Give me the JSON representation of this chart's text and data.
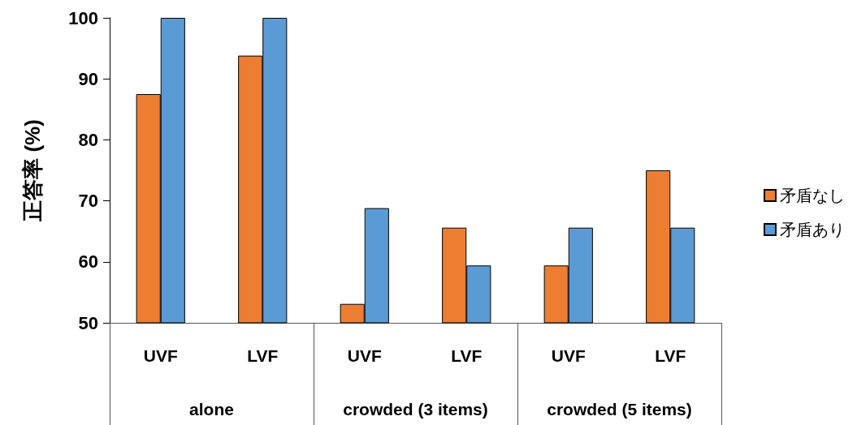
{
  "chart_data": {
    "type": "bar",
    "ylabel": "正答率 (%)",
    "categories": [
      "UVF",
      "LVF",
      "UVF",
      "LVF",
      "UVF",
      "LVF"
    ],
    "annotations": [
      "alone",
      "crowded (3 items)",
      "crowded (5 items)"
    ],
    "series": [
      {
        "name": "矛盾なし",
        "color": "#ed7d31",
        "values": [
          87.5,
          93.8,
          53.1,
          65.6,
          59.4,
          75
        ]
      },
      {
        "name": "矛盾あり",
        "color": "#5b9bd5",
        "values": [
          100,
          100,
          68.8,
          59.4,
          65.6,
          65.6
        ]
      }
    ],
    "ylim": [
      50,
      100
    ],
    "yticks": [
      50,
      60,
      70,
      80,
      90,
      100
    ],
    "grid": false,
    "legend": "right"
  }
}
